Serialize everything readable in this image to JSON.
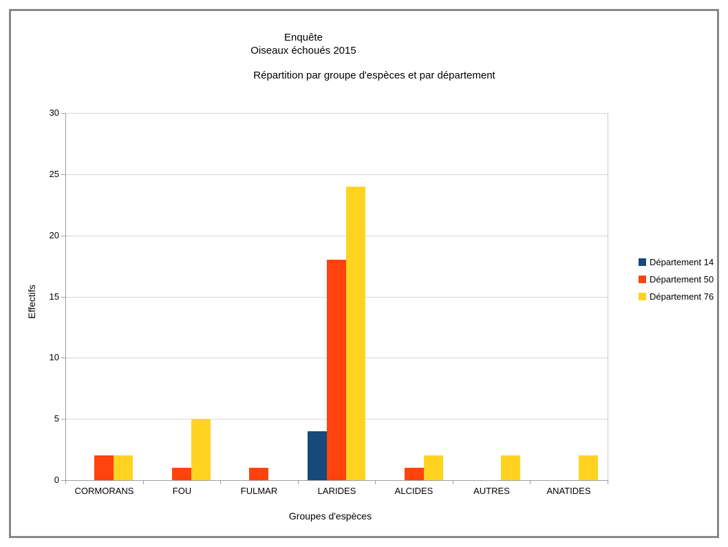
{
  "page": {
    "border_color": "#878787",
    "background": "#ffffff"
  },
  "chart_data": {
    "type": "bar",
    "title_lines": [
      "Enquête",
      "Oiseaux échoués 2015"
    ],
    "subtitle": "Répartition par groupe d'espèces et par département",
    "xlabel": "Groupes d'espèces",
    "ylabel": "Effectifs",
    "ylim": [
      0,
      30
    ],
    "ytick_step": 5,
    "ytick_labels": [
      "0",
      "5",
      "10",
      "15",
      "20",
      "25",
      "30"
    ],
    "grid": true,
    "legend_position": "right",
    "categories": [
      "CORMORANS",
      "FOU",
      "FULMAR",
      "LARIDES",
      "ALCIDES",
      "AUTRES",
      "ANATIDES"
    ],
    "series": [
      {
        "name": "Département 14",
        "color": "#17497B",
        "values": [
          0,
          0,
          0,
          4,
          0,
          0,
          0
        ]
      },
      {
        "name": "Département 50",
        "color": "#FF420E",
        "values": [
          2,
          1,
          1,
          18,
          1,
          0,
          0
        ]
      },
      {
        "name": "Département 76",
        "color": "#FFD320",
        "values": [
          2,
          5,
          0,
          24,
          2,
          2,
          2
        ]
      }
    ],
    "colors": {
      "gridline": "#d6d6d6",
      "axis": "#9e9e9e",
      "plot_right_border": "#c9c9c9",
      "text": "#000000"
    }
  }
}
